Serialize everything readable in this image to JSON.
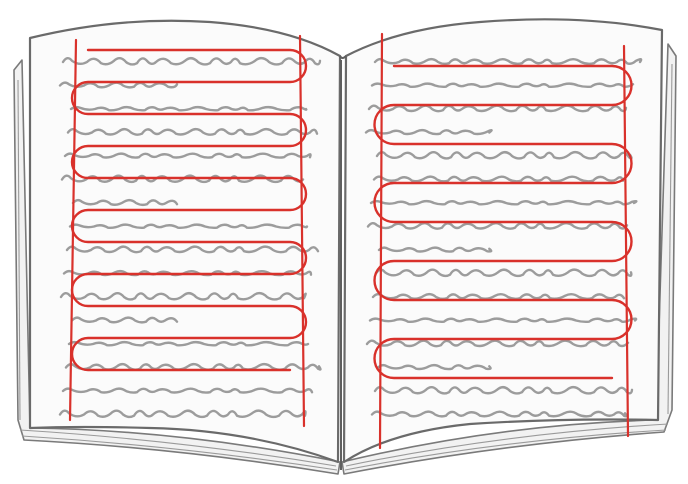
{
  "image": {
    "subject": "open-book-sketch",
    "colors": {
      "background": "#ffffff",
      "page": "#fbfbfb",
      "outline": "#6a6a6a",
      "scribble": "#9c9c9c",
      "reading_path": "#d9312b"
    }
  },
  "left_page": {
    "reading_path_rows": 11,
    "scribble_lines": 16
  },
  "right_page": {
    "reading_path_rows": 9,
    "scribble_lines": 16
  }
}
